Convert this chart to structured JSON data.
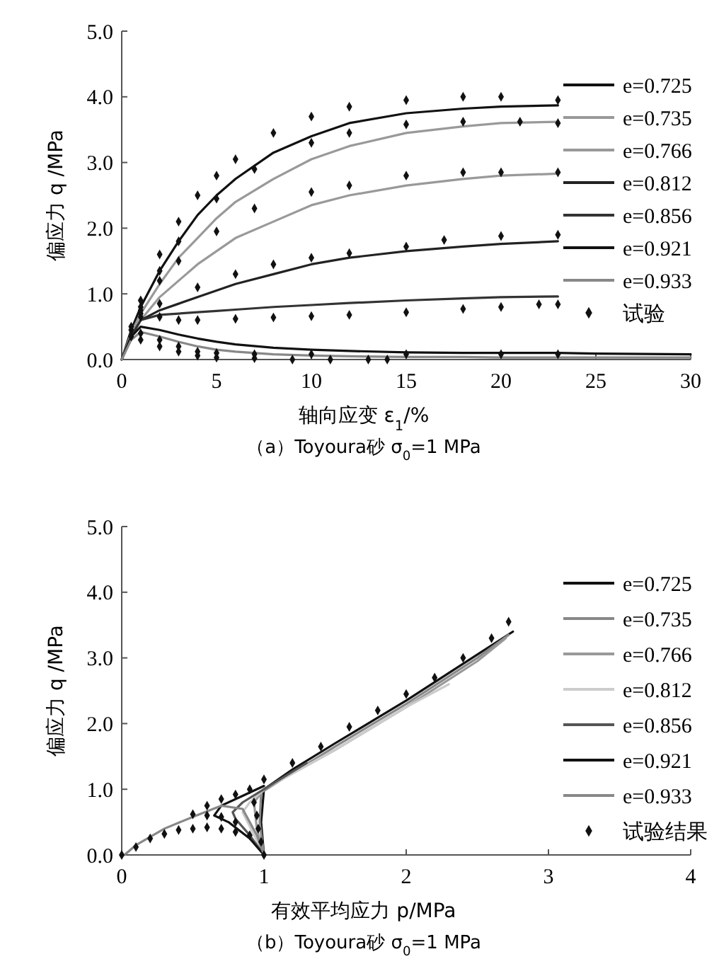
{
  "chart_data": [
    {
      "type": "line",
      "title": "（a）Toyoura砂 σ$_{0}$=1 MPa",
      "xlabel": "轴向应变 ε$_{1}$/%",
      "ylabel": "偏应力 q /MPa",
      "xlim": [
        0,
        30
      ],
      "xticks": [
        0,
        5,
        10,
        15,
        20,
        25,
        30
      ],
      "ylim": [
        0,
        5
      ],
      "yticks": [
        {
          "value": 0,
          "label": "0.0"
        },
        {
          "value": 1,
          "label": "1.0"
        },
        {
          "value": 2,
          "label": "2.0"
        },
        {
          "value": 3,
          "label": "3.0"
        },
        {
          "value": 4,
          "label": "4.0"
        },
        {
          "value": 5,
          "label": "5.0"
        }
      ],
      "legend": "right",
      "grid": false,
      "line_style": "solid",
      "x": [
        0,
        0.5,
        1,
        2,
        3,
        4,
        5,
        6,
        8,
        10,
        12,
        15,
        18,
        20,
        23
      ],
      "series": [
        {
          "name": "e=0.725",
          "color": "#111111",
          "values": [
            0,
            0.45,
            0.8,
            1.35,
            1.8,
            2.2,
            2.5,
            2.75,
            3.15,
            3.4,
            3.6,
            3.75,
            3.82,
            3.85,
            3.87
          ]
        },
        {
          "name": "e=0.735",
          "color": "#999999",
          "values": [
            0,
            0.4,
            0.7,
            1.15,
            1.55,
            1.85,
            2.15,
            2.4,
            2.75,
            3.05,
            3.25,
            3.45,
            3.55,
            3.6,
            3.62
          ]
        },
        {
          "name": "e=0.766",
          "color": "#999999",
          "values": [
            0,
            0.35,
            0.6,
            0.95,
            1.2,
            1.45,
            1.65,
            1.85,
            2.1,
            2.35,
            2.5,
            2.65,
            2.75,
            2.8,
            2.83
          ]
        },
        {
          "name": "e=0.812",
          "color": "#222222",
          "values": [
            0,
            0.35,
            0.6,
            0.75,
            0.85,
            0.95,
            1.05,
            1.15,
            1.3,
            1.45,
            1.55,
            1.65,
            1.72,
            1.76,
            1.8
          ]
        },
        {
          "name": "e=0.856",
          "color": "#333333",
          "values": [
            0,
            0.35,
            0.6,
            0.68,
            0.7,
            0.72,
            0.74,
            0.76,
            0.8,
            0.83,
            0.86,
            0.9,
            0.93,
            0.95,
            0.96
          ]
        },
        {
          "name": "e=0.921",
          "color": "#111111",
          "x": [
            0,
            0.5,
            1,
            2,
            3,
            4,
            5,
            6,
            8,
            10,
            12,
            15,
            18,
            20,
            23,
            25,
            30
          ],
          "values": [
            0,
            0.35,
            0.5,
            0.45,
            0.38,
            0.32,
            0.27,
            0.23,
            0.18,
            0.15,
            0.13,
            0.11,
            0.1,
            0.1,
            0.1,
            0.09,
            0.08
          ]
        },
        {
          "name": "e=0.933",
          "color": "#888888",
          "x": [
            0,
            0.5,
            1,
            2,
            3,
            4,
            5,
            6,
            8,
            10,
            12,
            15,
            18,
            20,
            23,
            25,
            30
          ],
          "values": [
            0,
            0.3,
            0.42,
            0.35,
            0.27,
            0.2,
            0.15,
            0.12,
            0.08,
            0.06,
            0.05,
            0.04,
            0.04,
            0.03,
            0.03,
            0.03,
            0.03
          ]
        },
        {
          "name": "试验",
          "type": "scatter",
          "marker": "diamond",
          "color": "#111111",
          "x": [
            0.5,
            1,
            2,
            3,
            4,
            5,
            6,
            8,
            10,
            12,
            15,
            18,
            20,
            23,
            1,
            2,
            3,
            5,
            7,
            10,
            12,
            15,
            18,
            21,
            23,
            1,
            2,
            3,
            5,
            7,
            10,
            12,
            15,
            18,
            20,
            23,
            1,
            2,
            4,
            6,
            8,
            10,
            12,
            15,
            17,
            20,
            23,
            1,
            2,
            3,
            4,
            6,
            8,
            10,
            12,
            15,
            18,
            20,
            22,
            23,
            0.5,
            1,
            2,
            3,
            4,
            5,
            7,
            10,
            15,
            20,
            23,
            0.5,
            1,
            2,
            3,
            4,
            5,
            7,
            9,
            11,
            13,
            14
          ],
          "values": [
            0.5,
            0.9,
            1.6,
            2.1,
            2.5,
            2.8,
            3.05,
            3.45,
            3.7,
            3.85,
            3.95,
            4.0,
            4.0,
            3.95,
            0.8,
            1.35,
            1.8,
            2.45,
            2.9,
            3.3,
            3.45,
            3.58,
            3.62,
            3.62,
            3.6,
            0.75,
            1.2,
            1.5,
            1.95,
            2.3,
            2.55,
            2.65,
            2.8,
            2.85,
            2.85,
            2.85,
            0.7,
            0.85,
            1.1,
            1.3,
            1.45,
            1.55,
            1.62,
            1.72,
            1.82,
            1.88,
            1.9,
            0.65,
            0.65,
            0.6,
            0.6,
            0.62,
            0.64,
            0.66,
            0.68,
            0.72,
            0.77,
            0.8,
            0.84,
            0.84,
            0.45,
            0.4,
            0.3,
            0.2,
            0.12,
            0.1,
            0.08,
            0.08,
            0.08,
            0.08,
            0.08,
            0.35,
            0.3,
            0.2,
            0.12,
            0.06,
            0.03,
            0.02,
            0,
            0,
            0,
            0
          ]
        }
      ]
    },
    {
      "type": "line",
      "title": "（b）Toyoura砂 σ$_{0}$=1 MPa",
      "xlabel": "有效平均应力 p/MPa",
      "ylabel": "偏应力 q /MPa",
      "xlim": [
        0,
        4
      ],
      "xticks": [
        0,
        1,
        2,
        3,
        4
      ],
      "ylim": [
        0,
        5
      ],
      "yticks": [
        {
          "value": 0,
          "label": "0.0"
        },
        {
          "value": 1,
          "label": "1.0"
        },
        {
          "value": 2,
          "label": "2.0"
        },
        {
          "value": 3,
          "label": "3.0"
        },
        {
          "value": 4,
          "label": "4.0"
        },
        {
          "value": 5,
          "label": "5.0"
        }
      ],
      "legend": "right",
      "grid": false,
      "line_style": "solid",
      "series": [
        {
          "name": "e=0.725",
          "color": "#111111",
          "x": [
            1,
            0.98,
            1.0,
            1.2,
            1.5,
            2,
            2.5,
            2.75
          ],
          "values": [
            0,
            0.5,
            1.0,
            1.3,
            1.7,
            2.35,
            3.05,
            3.4
          ]
        },
        {
          "name": "e=0.735",
          "color": "#888888",
          "x": [
            1,
            0.97,
            0.98,
            1.2,
            1.5,
            2,
            2.5,
            2.72
          ],
          "values": [
            0,
            0.5,
            0.95,
            1.25,
            1.65,
            2.3,
            3.0,
            3.35
          ]
        },
        {
          "name": "e=0.766",
          "color": "#999999",
          "x": [
            1,
            0.95,
            0.93,
            1.0,
            1.5,
            2,
            2.5,
            2.7
          ],
          "values": [
            0,
            0.4,
            0.8,
            1.0,
            1.6,
            2.25,
            2.95,
            3.3
          ]
        },
        {
          "name": "e=0.812",
          "color": "#cccccc",
          "x": [
            1,
            0.92,
            0.85,
            0.9,
            1.0,
            1.5,
            2,
            2.3
          ],
          "values": [
            0,
            0.35,
            0.65,
            0.8,
            1.0,
            1.6,
            2.25,
            2.6
          ]
        },
        {
          "name": "e=0.856",
          "color": "#555555",
          "x": [
            1,
            0.9,
            0.8,
            0.78,
            0.85,
            1.0,
            1.3
          ],
          "values": [
            0,
            0.3,
            0.55,
            0.65,
            0.8,
            1.0,
            1.4
          ]
        },
        {
          "name": "e=0.921",
          "color": "#111111",
          "x": [
            1,
            0.9,
            0.75,
            0.65,
            0.7,
            0.85,
            1.0
          ],
          "values": [
            0,
            0.25,
            0.5,
            0.6,
            0.75,
            0.9,
            1.05
          ]
        },
        {
          "name": "e=0.933",
          "color": "#888888",
          "x": [
            1,
            0.95,
            0.85,
            0.7,
            0.5,
            0.3,
            0.1,
            0.02
          ],
          "values": [
            0,
            0.3,
            0.7,
            0.75,
            0.58,
            0.4,
            0.15,
            0
          ]
        },
        {
          "name": "试验结果",
          "type": "scatter",
          "marker": "diamond",
          "color": "#111111",
          "x": [
            1,
            1.2,
            1.4,
            1.6,
            1.8,
            2,
            2.2,
            2.4,
            2.6,
            2.72,
            1,
            0.98,
            0.96,
            0.95,
            0.93,
            0.9,
            0.5,
            0.6,
            0.7,
            0.8,
            0.6,
            0.7,
            0.8,
            0,
            0.1,
            0.2,
            0.3,
            0.4,
            0.5,
            0.6,
            0.7,
            0.8,
            0.9
          ],
          "values": [
            1.15,
            1.4,
            1.65,
            1.95,
            2.2,
            2.45,
            2.7,
            3.0,
            3.3,
            3.55,
            0,
            0.2,
            0.4,
            0.6,
            0.8,
            1.0,
            0.62,
            0.75,
            0.85,
            0.92,
            0.6,
            0.58,
            0.5,
            0,
            0.12,
            0.25,
            0.32,
            0.38,
            0.4,
            0.42,
            0.4,
            0.35,
            0.3
          ]
        }
      ]
    }
  ]
}
